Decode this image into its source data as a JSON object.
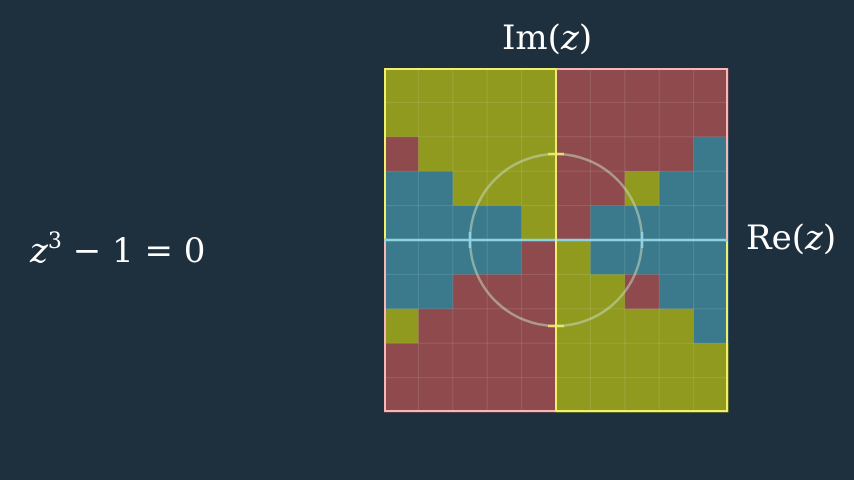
{
  "equation": {
    "variable": "z",
    "exponent": "3",
    "rest": " − 1 = 0"
  },
  "axes": {
    "imag_prefix": "Im(",
    "real_prefix": "Re(",
    "variable": "z",
    "suffix": ")"
  },
  "colors": {
    "background": "#1e2f3e",
    "root_yellow": "#8f9a1e",
    "root_red": "#8e4a4d",
    "root_blue": "#3a7a8c",
    "yellow_border": "#f2f06a",
    "red_border": "#f6b7b7",
    "axis": "#8fd3e0",
    "circle": "#c8d8c0"
  },
  "grid": {
    "size": 10,
    "legend": "Y = root 1 (yellow), R = root 2 (red), B = root 3 (blue)",
    "rows": [
      "YYYYYRRRRR",
      "YYYYYRRRRR",
      "RYYYYRRRRB",
      "BBYYYRRYBB",
      "BBBBYRBBBB",
      "BBBBRYBBBB",
      "BBRRRYYRBB",
      "YRRRRYYYYB",
      "RRRRRYYYYY",
      "RRRRRYYYYY"
    ]
  }
}
